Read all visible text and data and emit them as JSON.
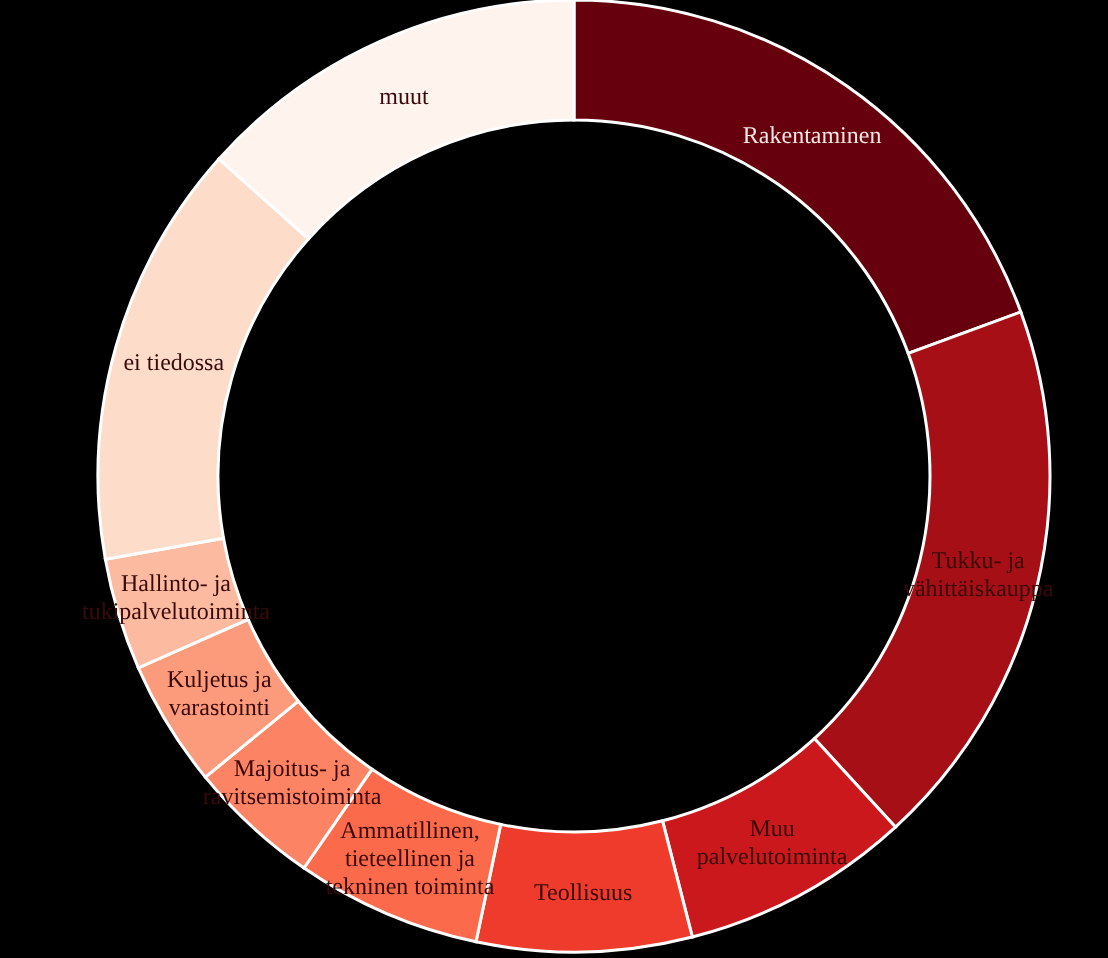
{
  "chart_data": {
    "type": "donut",
    "categories": [
      "Rakentaminen",
      "Tukku- ja vähittäiskauppa",
      "Muu palvelutoiminta",
      "Teollisuus",
      "Ammatillinen, tieteellinen ja tekninen toiminta",
      "Majoitus- ja ravitsemistoiminta",
      "Kuljetus ja varastointi",
      "Hallinto- ja tukipalvelutoiminta",
      "ei tiedossa",
      "muut"
    ],
    "values": [
      19.4,
      18.8,
      7.8,
      7.3,
      6.3,
      4.5,
      4.3,
      3.8,
      14.4,
      13.4
    ],
    "colors": [
      "#67000d",
      "#a50f15",
      "#cb181d",
      "#ef3b2c",
      "#fb6a4a",
      "#fc8363",
      "#fc9a7c",
      "#fcbba1",
      "#fddcca",
      "#fff3ee"
    ],
    "legend": false
  }
}
